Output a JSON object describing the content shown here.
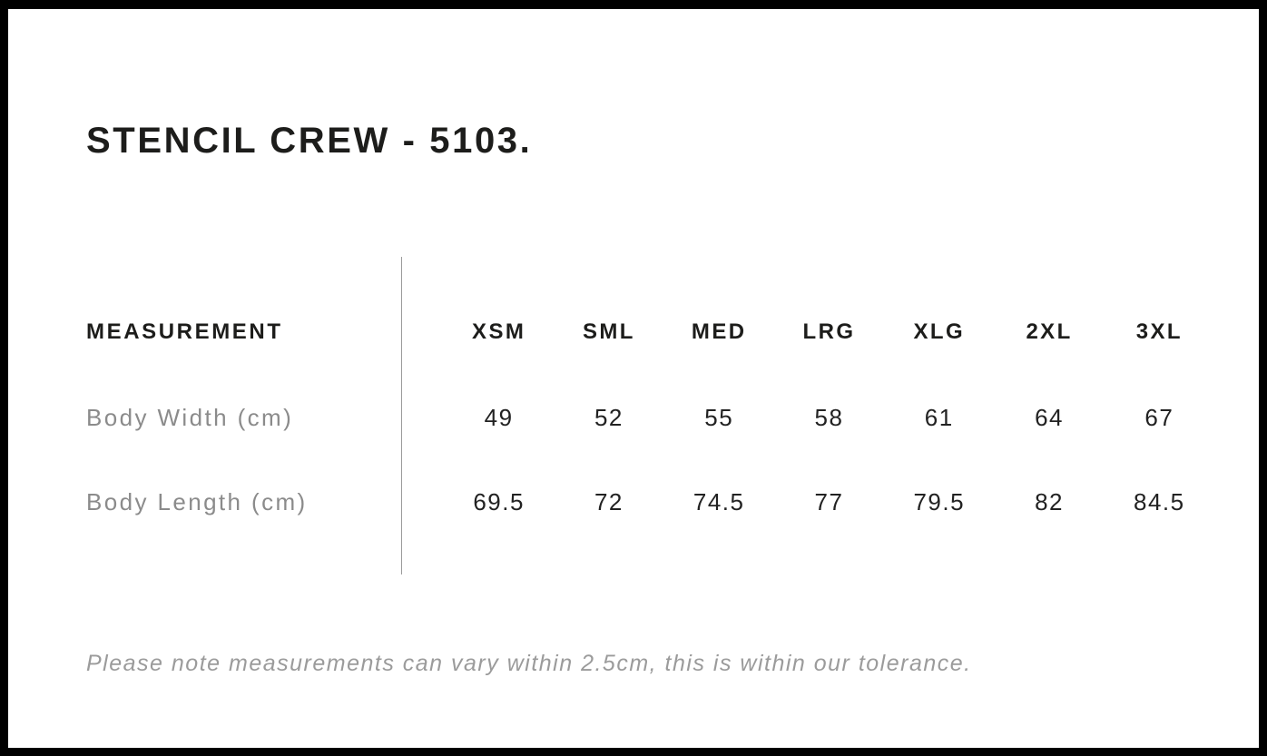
{
  "page": {
    "title": "STENCIL CREW - 5103."
  },
  "size_chart": {
    "header_label": "MEASUREMENT",
    "sizes": [
      "XSM",
      "SML",
      "MED",
      "LRG",
      "XLG",
      "2XL",
      "3XL"
    ],
    "rows": [
      {
        "label": "Body Width (cm)",
        "values": [
          "49",
          "52",
          "55",
          "58",
          "61",
          "64",
          "67"
        ]
      },
      {
        "label": "Body Length (cm)",
        "values": [
          "69.5",
          "72",
          "74.5",
          "77",
          "79.5",
          "82",
          "84.5"
        ]
      }
    ]
  },
  "footer": {
    "note": "Please note measurements can vary within 2.5cm, this is within our tolerance."
  },
  "colors": {
    "frame_border": "#000000",
    "background": "#ffffff",
    "text_primary": "#1d1d1b",
    "text_muted_label": "#8b8b8b",
    "text_footer": "#9b9b9b",
    "divider": "#9b9b9b"
  }
}
